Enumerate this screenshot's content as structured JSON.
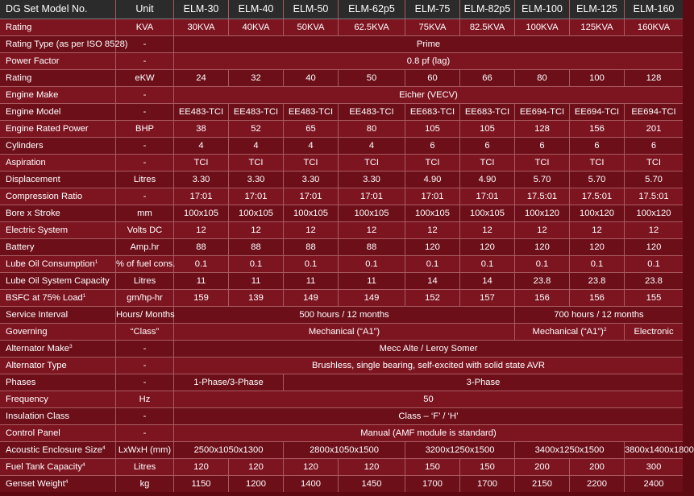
{
  "header": {
    "model_label": "DG Set Model No.",
    "unit_label": "Unit",
    "models": [
      "ELM-30",
      "ELM-40",
      "ELM-50",
      "ELM-62p5",
      "ELM-75",
      "ELM-82p5",
      "ELM-100",
      "ELM-125",
      "ELM-160"
    ]
  },
  "rows": [
    {
      "label": "Rating",
      "unit": "KVA",
      "cells": [
        {
          "t": "30KVA"
        },
        {
          "t": "40KVA"
        },
        {
          "t": "50KVA"
        },
        {
          "t": "62.5KVA"
        },
        {
          "t": "75KVA"
        },
        {
          "t": "82.5KVA"
        },
        {
          "t": "100KVA"
        },
        {
          "t": "125KVA"
        },
        {
          "t": "160KVA"
        }
      ]
    },
    {
      "label": "Rating Type (as per ISO 8528)",
      "unit": "-",
      "cells": [
        {
          "t": "Prime",
          "span": 9
        }
      ]
    },
    {
      "label": "Power Factor",
      "unit": "-",
      "cells": [
        {
          "t": "0.8 pf (lag)",
          "span": 9
        }
      ]
    },
    {
      "label": "Rating",
      "unit": "eKW",
      "cells": [
        {
          "t": "24"
        },
        {
          "t": "32"
        },
        {
          "t": "40"
        },
        {
          "t": "50"
        },
        {
          "t": "60"
        },
        {
          "t": "66"
        },
        {
          "t": "80"
        },
        {
          "t": "100"
        },
        {
          "t": "128"
        }
      ]
    },
    {
      "label": "Engine Make",
      "unit": "-",
      "cells": [
        {
          "t": "Eicher (VECV)",
          "span": 9
        }
      ]
    },
    {
      "label": "Engine Model",
      "unit": "-",
      "cells": [
        {
          "t": "EE483-TCI"
        },
        {
          "t": "EE483-TCI"
        },
        {
          "t": "EE483-TCI"
        },
        {
          "t": "EE483-TCI"
        },
        {
          "t": "EE683-TCI"
        },
        {
          "t": "EE683-TCI"
        },
        {
          "t": "EE694-TCI"
        },
        {
          "t": "EE694-TCI"
        },
        {
          "t": "EE694-TCI"
        }
      ]
    },
    {
      "label": "Engine Rated  Power",
      "unit": "BHP",
      "cells": [
        {
          "t": "38"
        },
        {
          "t": "52"
        },
        {
          "t": "65"
        },
        {
          "t": "80"
        },
        {
          "t": "105"
        },
        {
          "t": "105"
        },
        {
          "t": "128"
        },
        {
          "t": "156"
        },
        {
          "t": "201"
        }
      ]
    },
    {
      "label": "Cylinders",
      "unit": "-",
      "cells": [
        {
          "t": "4"
        },
        {
          "t": "4"
        },
        {
          "t": "4"
        },
        {
          "t": "4"
        },
        {
          "t": "6"
        },
        {
          "t": "6"
        },
        {
          "t": "6"
        },
        {
          "t": "6"
        },
        {
          "t": "6"
        }
      ]
    },
    {
      "label": "Aspiration",
      "unit": "-",
      "cells": [
        {
          "t": "TCI"
        },
        {
          "t": "TCI"
        },
        {
          "t": "TCI"
        },
        {
          "t": "TCI"
        },
        {
          "t": "TCI"
        },
        {
          "t": "TCI"
        },
        {
          "t": "TCI"
        },
        {
          "t": "TCI"
        },
        {
          "t": "TCI"
        }
      ]
    },
    {
      "label": "Displacement",
      "unit": "Litres",
      "cells": [
        {
          "t": "3.30"
        },
        {
          "t": "3.30"
        },
        {
          "t": "3.30"
        },
        {
          "t": "3.30"
        },
        {
          "t": "4.90"
        },
        {
          "t": "4.90"
        },
        {
          "t": "5.70"
        },
        {
          "t": "5.70"
        },
        {
          "t": "5.70"
        }
      ]
    },
    {
      "label": "Compression Ratio",
      "unit": "-",
      "cells": [
        {
          "t": "17:01"
        },
        {
          "t": "17:01"
        },
        {
          "t": "17:01"
        },
        {
          "t": "17:01"
        },
        {
          "t": "17:01"
        },
        {
          "t": "17:01"
        },
        {
          "t": "17.5:01"
        },
        {
          "t": "17.5:01"
        },
        {
          "t": "17.5:01"
        }
      ]
    },
    {
      "label": "Bore x Stroke",
      "unit": "mm",
      "cells": [
        {
          "t": "100x105"
        },
        {
          "t": "100x105"
        },
        {
          "t": "100x105"
        },
        {
          "t": "100x105"
        },
        {
          "t": "100x105"
        },
        {
          "t": "100x105"
        },
        {
          "t": "100x120"
        },
        {
          "t": "100x120"
        },
        {
          "t": "100x120"
        }
      ]
    },
    {
      "label": "Electric System",
      "unit": "Volts DC",
      "cells": [
        {
          "t": "12"
        },
        {
          "t": "12"
        },
        {
          "t": "12"
        },
        {
          "t": "12"
        },
        {
          "t": "12"
        },
        {
          "t": "12"
        },
        {
          "t": "12"
        },
        {
          "t": "12"
        },
        {
          "t": "12"
        }
      ]
    },
    {
      "label": "Battery",
      "unit": "Amp.hr",
      "cells": [
        {
          "t": "88"
        },
        {
          "t": "88"
        },
        {
          "t": "88"
        },
        {
          "t": "88"
        },
        {
          "t": "120"
        },
        {
          "t": "120"
        },
        {
          "t": "120"
        },
        {
          "t": "120"
        },
        {
          "t": "120"
        }
      ]
    },
    {
      "label": "Lube Oil Consumption",
      "sup": "1",
      "unit": "% of fuel cons.",
      "cells": [
        {
          "t": "0.1"
        },
        {
          "t": "0.1"
        },
        {
          "t": "0.1"
        },
        {
          "t": "0.1"
        },
        {
          "t": "0.1"
        },
        {
          "t": "0.1"
        },
        {
          "t": "0.1"
        },
        {
          "t": "0.1"
        },
        {
          "t": "0.1"
        }
      ]
    },
    {
      "label": "Lube Oil System Capacity",
      "unit": "Litres",
      "cells": [
        {
          "t": "11"
        },
        {
          "t": "11"
        },
        {
          "t": "11"
        },
        {
          "t": "11"
        },
        {
          "t": "14"
        },
        {
          "t": "14"
        },
        {
          "t": "23.8"
        },
        {
          "t": "23.8"
        },
        {
          "t": "23.8"
        }
      ]
    },
    {
      "label": "BSFC at 75% Load",
      "sup": "1",
      "unit": "gm/hp-hr",
      "cells": [
        {
          "t": "159"
        },
        {
          "t": "139"
        },
        {
          "t": "149"
        },
        {
          "t": "149"
        },
        {
          "t": "152"
        },
        {
          "t": "157"
        },
        {
          "t": "156"
        },
        {
          "t": "156"
        },
        {
          "t": "155"
        }
      ]
    },
    {
      "label": "Service Interval",
      "unit": "Hours/ Months",
      "cells": [
        {
          "t": "500 hours / 12 months",
          "span": 6
        },
        {
          "t": "700 hours / 12 months",
          "span": 3
        }
      ]
    },
    {
      "label": "Governing",
      "unit": "“Class”",
      "cells": [
        {
          "t": "Mechanical (“A1”)",
          "span": 6
        },
        {
          "t": "Mechanical (“A1”)",
          "sup": "2",
          "span": 2
        },
        {
          "t": "Electronic"
        }
      ]
    },
    {
      "label": "Alternator Make",
      "sup": "3",
      "unit": "-",
      "cells": [
        {
          "t": "Mecc Alte / Leroy Somer",
          "span": 9
        }
      ]
    },
    {
      "label": "Alternator Type",
      "unit": "-",
      "cells": [
        {
          "t": "Brushless, single bearing, self-excited with solid state AVR",
          "span": 9
        }
      ]
    },
    {
      "label": "Phases",
      "unit": "-",
      "cells": [
        {
          "t": "1-Phase/3-Phase",
          "span": 2
        },
        {
          "t": "3-Phase",
          "span": 7
        }
      ]
    },
    {
      "label": "Frequency",
      "unit": "Hz",
      "cells": [
        {
          "t": "50",
          "span": 9
        }
      ]
    },
    {
      "label": "Insulation Class",
      "unit": "-",
      "cells": [
        {
          "t": "Class – ‘F’ / ‘H’",
          "span": 9
        }
      ]
    },
    {
      "label": "Control Panel",
      "unit": "-",
      "cells": [
        {
          "t": "Manual (AMF module is standard)",
          "span": 9
        }
      ]
    },
    {
      "label": "Acoustic Enclosure Size",
      "sup": "4",
      "unit": "LxWxH (mm)",
      "cells": [
        {
          "t": "2500x1050x1300",
          "span": 2
        },
        {
          "t": "2800x1050x1500",
          "span": 2
        },
        {
          "t": "3200x1250x1500",
          "span": 2
        },
        {
          "t": "3400x1250x1500",
          "span": 2
        },
        {
          "t": "3800x1400x1800"
        }
      ]
    },
    {
      "label": "Fuel Tank Capacity",
      "sup": "4",
      "unit": "Litres",
      "cells": [
        {
          "t": "120"
        },
        {
          "t": "120"
        },
        {
          "t": "120"
        },
        {
          "t": "120"
        },
        {
          "t": "150"
        },
        {
          "t": "150"
        },
        {
          "t": "200"
        },
        {
          "t": "200"
        },
        {
          "t": "300"
        }
      ]
    },
    {
      "label": "Genset Weight",
      "sup": "4",
      "unit": "kg",
      "cells": [
        {
          "t": "1150"
        },
        {
          "t": "1200"
        },
        {
          "t": "1400"
        },
        {
          "t": "1450"
        },
        {
          "t": "1700"
        },
        {
          "t": "1700"
        },
        {
          "t": "2150"
        },
        {
          "t": "2200"
        },
        {
          "t": "2400"
        }
      ]
    }
  ]
}
